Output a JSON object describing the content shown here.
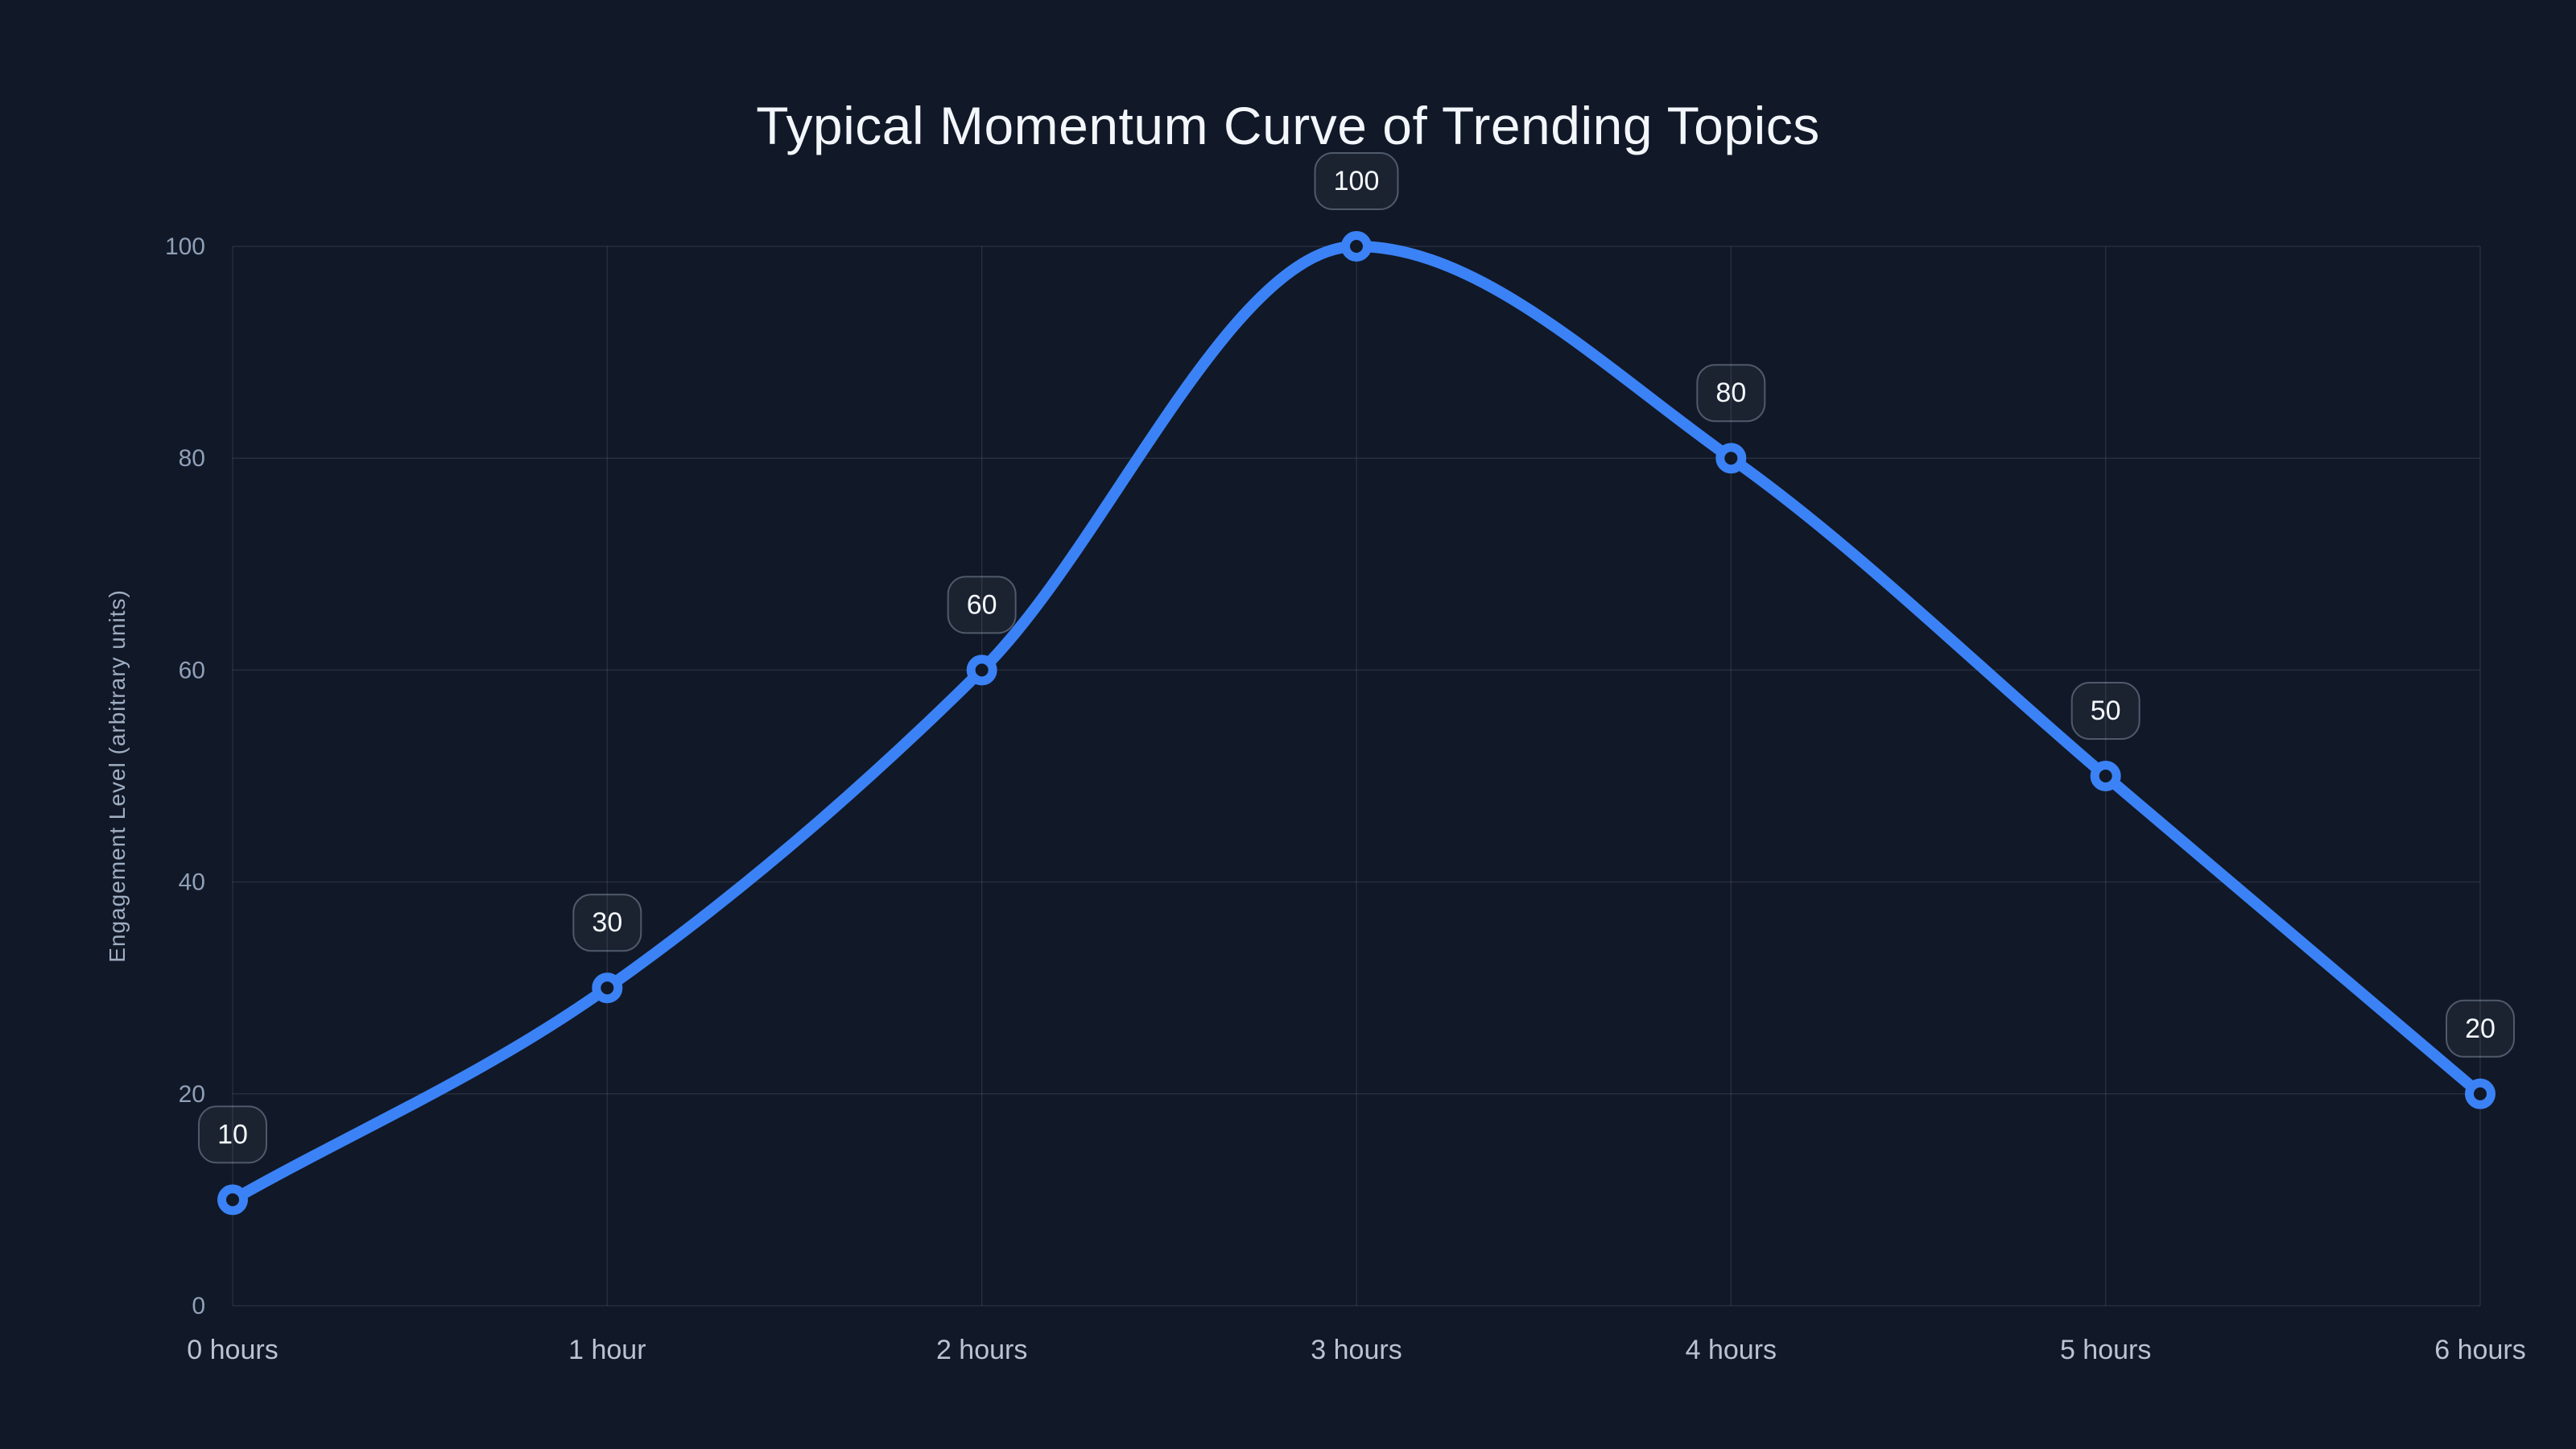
{
  "page": {
    "background": "#111827"
  },
  "chart_data": {
    "type": "line",
    "title": "Typical Momentum Curve of Trending Topics",
    "xlabel": "",
    "ylabel": "Engagement Level (arbitrary units)",
    "categories": [
      "0 hours",
      "1 hour",
      "2 hours",
      "3 hours",
      "4 hours",
      "5 hours",
      "6 hours"
    ],
    "series": [
      {
        "name": "Engagement Level",
        "values": [
          10,
          30,
          60,
          100,
          80,
          50,
          20
        ]
      }
    ],
    "point_labels": [
      "10",
      "30",
      "60",
      "100",
      "80",
      "50",
      "20"
    ],
    "y_ticks": [
      0,
      20,
      40,
      60,
      80,
      100
    ],
    "ylim": [
      0,
      100
    ],
    "grid": true,
    "legend_position": "none",
    "line_style": "smooth-monotone",
    "colors": {
      "line": "#3b82f6",
      "marker_ring": "#3b82f6",
      "marker_fill": "#111827",
      "grid": "rgba(148,163,184,0.16)",
      "y_tick_text": "#8fa0b8",
      "x_tick_text": "#b9c3d2",
      "title_text": "#f3f6fb",
      "axis_title_text": "#9fadc2",
      "label_box_fill": "rgba(148,163,184,0.08)",
      "label_box_border": "rgba(148,163,184,0.45)",
      "label_text": "#f5f8fc",
      "background": "#111827"
    }
  }
}
